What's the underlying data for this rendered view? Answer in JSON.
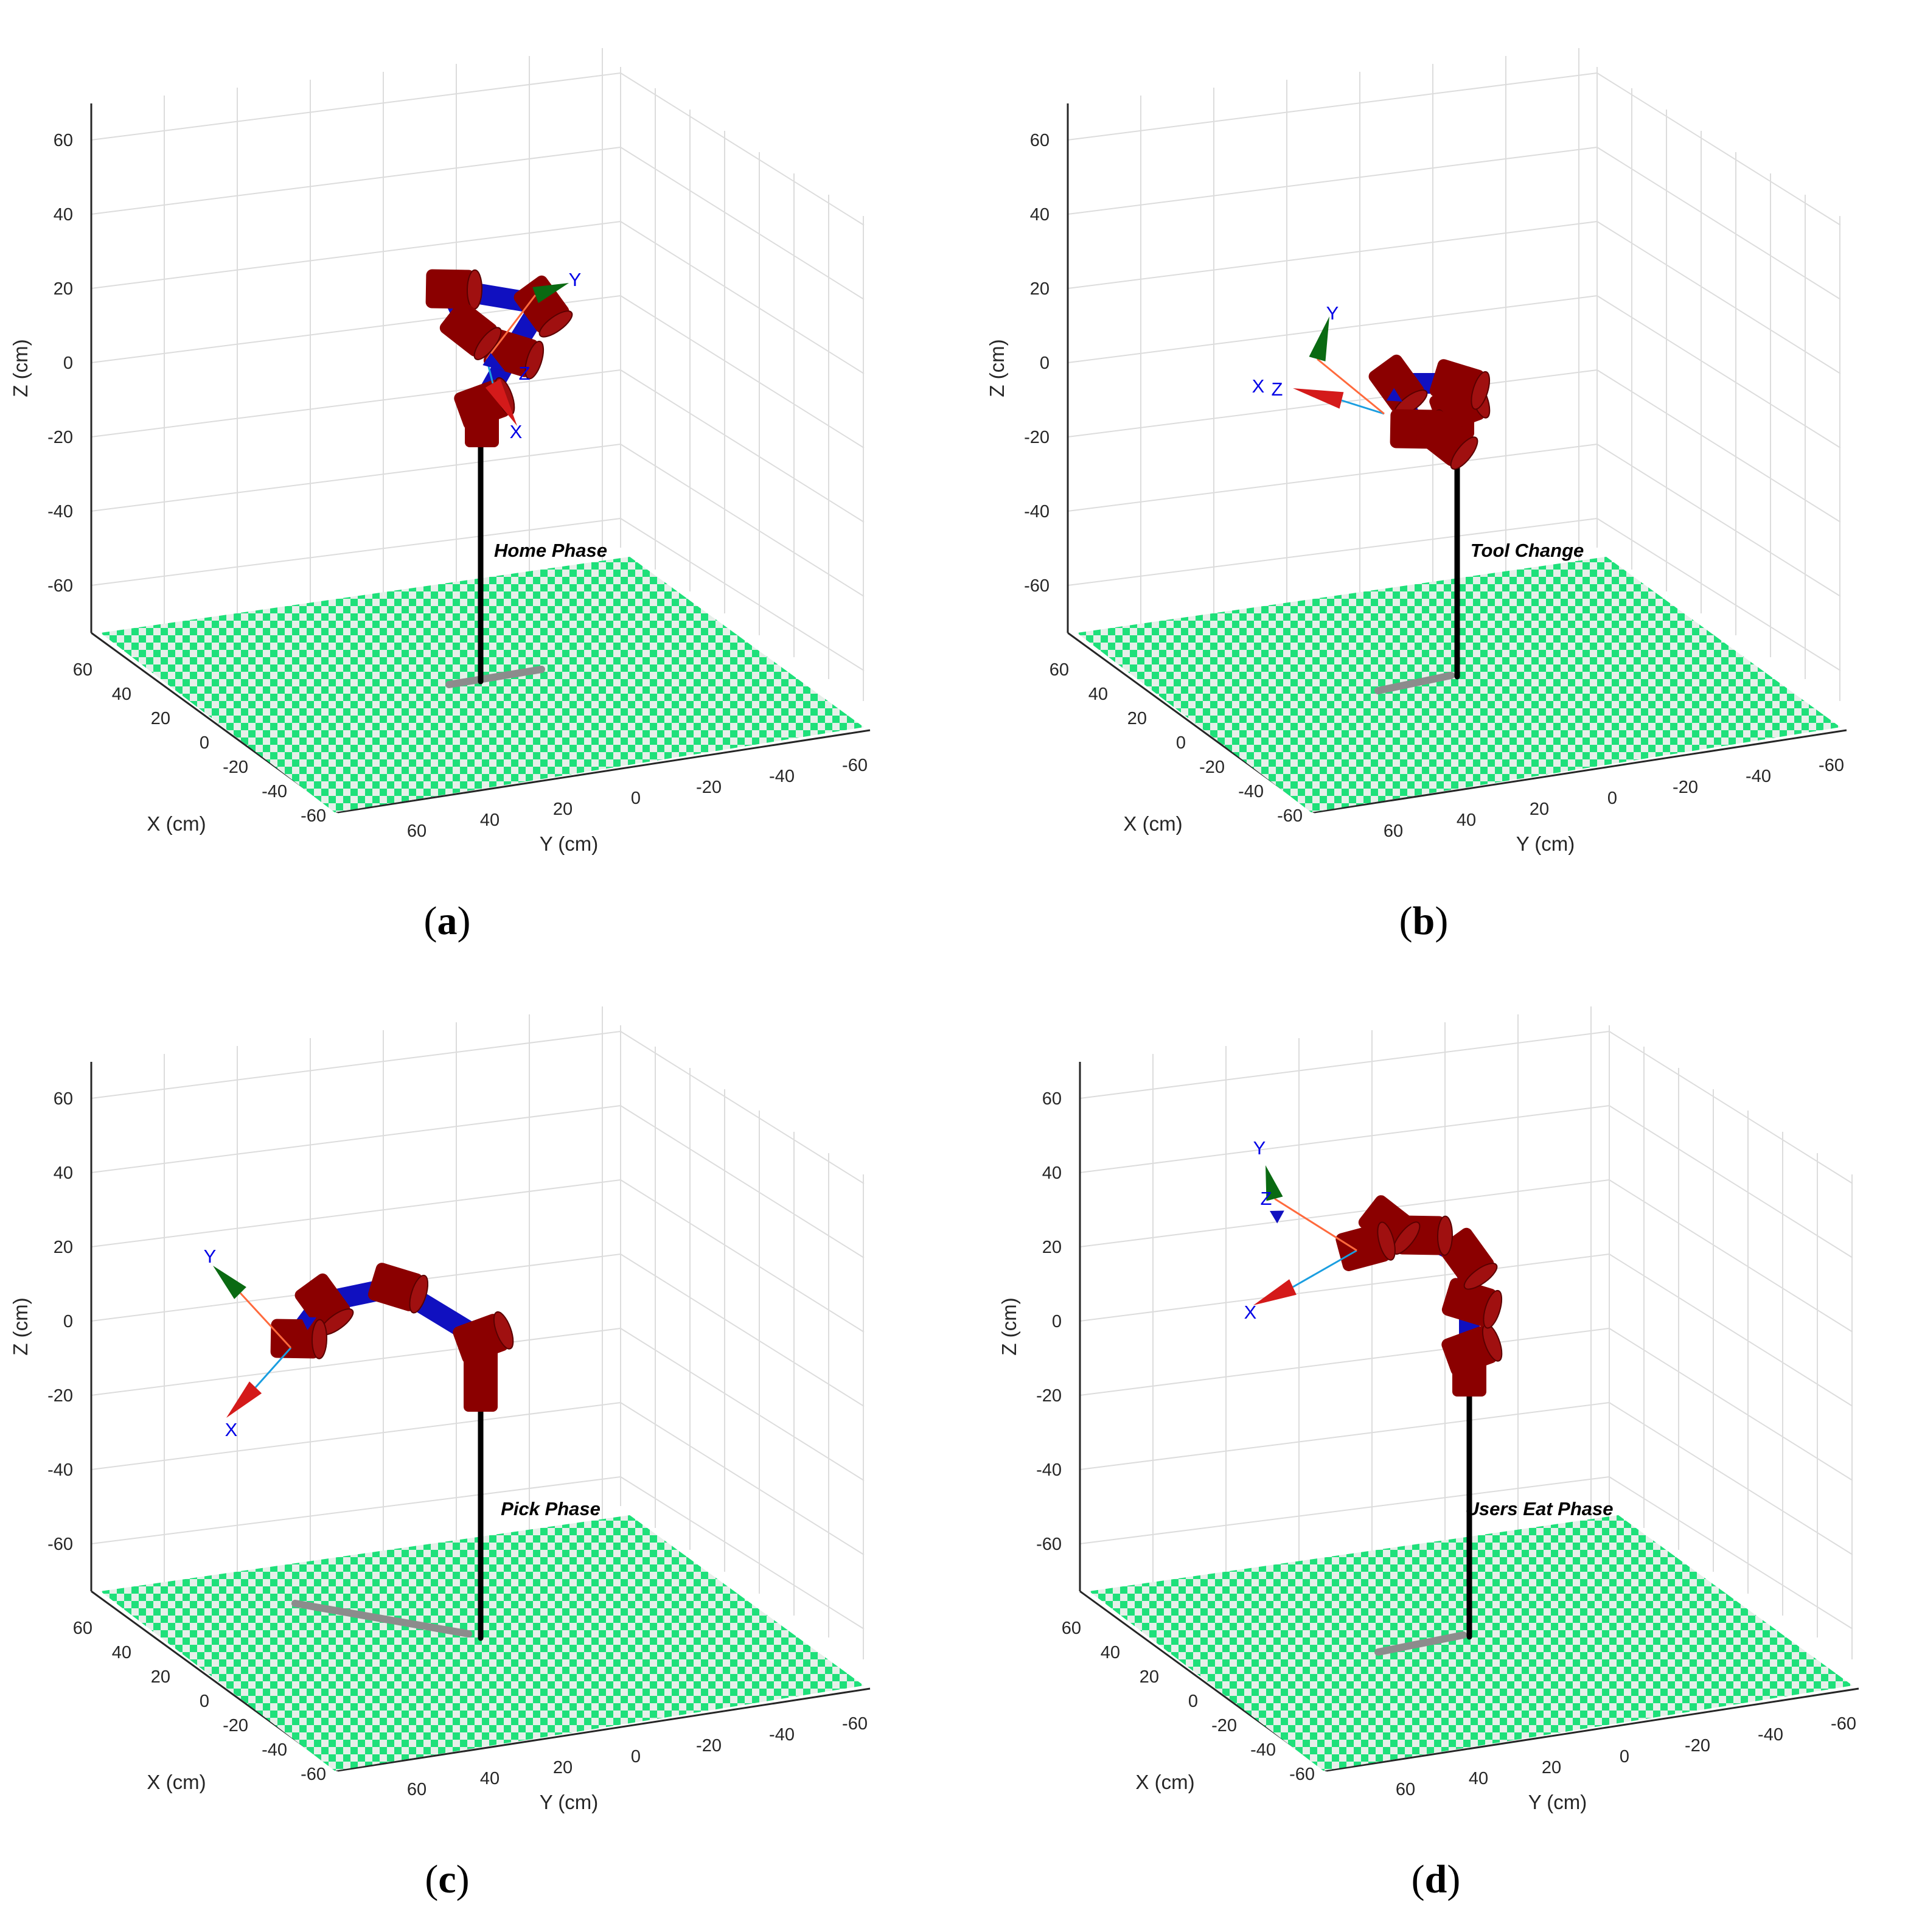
{
  "colors": {
    "floor_green": "#1ee07a",
    "floor_light": "#e6efe9",
    "link_red": "#8b0000",
    "link_blue": "#1010c0",
    "pole": "#000000",
    "shadow": "#8c8c8c",
    "axis_x": "#d41a1a",
    "axis_y": "#0a6a12",
    "frame_text": "#0000e6",
    "grid": "#dcdcdc"
  },
  "axes": {
    "z_label": "Z (cm)",
    "x_label": "X (cm)",
    "y_label": "Y (cm)",
    "z_ticks": [
      "60",
      "40",
      "20",
      "0",
      "-20",
      "-40",
      "-60"
    ],
    "x_ticks": [
      "60",
      "40",
      "20",
      "0",
      "-20",
      "-40",
      "-60"
    ],
    "y_ticks": [
      "60",
      "40",
      "20",
      "0",
      "-20",
      "-40",
      "-60"
    ]
  },
  "panels": [
    {
      "id": "a",
      "caption_letter": "a",
      "phase_label": "Home Phase",
      "frame": {
        "x": "X",
        "y": "Y",
        "z": "Z"
      }
    },
    {
      "id": "b",
      "caption_letter": "b",
      "phase_label": "Tool Change",
      "frame": {
        "x": "X",
        "y": "Y",
        "z": "Z"
      }
    },
    {
      "id": "c",
      "caption_letter": "c",
      "phase_label": "Pick Phase",
      "frame": {
        "x": "X",
        "y": "Y",
        "z": ""
      }
    },
    {
      "id": "d",
      "caption_letter": "d",
      "phase_label": "Users Eat Phase",
      "frame": {
        "x": "X",
        "y": "Y",
        "z": "Z"
      }
    }
  ]
}
